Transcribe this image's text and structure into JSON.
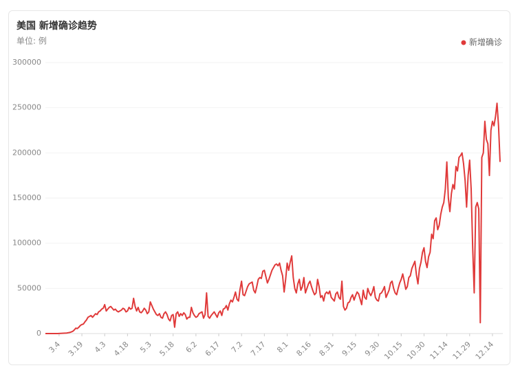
{
  "chart_data": {
    "type": "line",
    "title": "美国 新增确诊趋势",
    "subtitle": "单位: 例",
    "categories": [
      null,
      null,
      null,
      null,
      null,
      null,
      null,
      null,
      null,
      "3.4",
      null,
      null,
      null,
      null,
      null,
      null,
      null,
      null,
      null,
      null,
      null,
      null,
      null,
      null,
      "3.19",
      null,
      null,
      null,
      null,
      null,
      null,
      null,
      null,
      null,
      null,
      null,
      null,
      null,
      null,
      "4.3",
      null,
      null,
      null,
      null,
      null,
      null,
      null,
      null,
      null,
      null,
      null,
      null,
      null,
      null,
      "4.18",
      null,
      null,
      null,
      null,
      null,
      null,
      null,
      null,
      null,
      null,
      null,
      null,
      null,
      null,
      "5.3",
      null,
      null,
      null,
      null,
      null,
      null,
      null,
      null,
      null,
      null,
      null,
      null,
      null,
      null,
      "5.18",
      null,
      null,
      null,
      null,
      null,
      null,
      null,
      null,
      null,
      null,
      null,
      null,
      null,
      null,
      "6.2",
      null,
      null,
      null,
      null,
      null,
      null,
      null,
      null,
      null,
      null,
      null,
      null,
      null,
      null,
      "6.17",
      null,
      null,
      null,
      null,
      null,
      null,
      null,
      null,
      null,
      null,
      null,
      null,
      null,
      null,
      "7.2",
      null,
      null,
      null,
      null,
      null,
      null,
      null,
      null,
      null,
      null,
      null,
      null,
      null,
      null,
      "7.17",
      null,
      null,
      null,
      null,
      null,
      null,
      null,
      null,
      null,
      null,
      null,
      null,
      null,
      null,
      "8.1",
      null,
      null,
      null,
      null,
      null,
      null,
      null,
      null,
      null,
      null,
      null,
      null,
      null,
      null,
      "8.16",
      null,
      null,
      null,
      null,
      null,
      null,
      null,
      null,
      null,
      null,
      null,
      null,
      null,
      null,
      "8.31",
      null,
      null,
      null,
      null,
      null,
      null,
      null,
      null,
      null,
      null,
      null,
      null,
      null,
      null,
      "9.15",
      null,
      null,
      null,
      null,
      null,
      null,
      null,
      null,
      null,
      null,
      null,
      null,
      null,
      null,
      "9.30",
      null,
      null,
      null,
      null,
      null,
      null,
      null,
      null,
      null,
      null,
      null,
      null,
      null,
      null,
      "10.15",
      null,
      null,
      null,
      null,
      null,
      null,
      null,
      null,
      null,
      null,
      null,
      null,
      null,
      null,
      "10.30",
      null,
      null,
      null,
      null,
      null,
      null,
      null,
      null,
      null,
      null,
      null,
      null,
      null,
      null,
      "11.14",
      null,
      null,
      null,
      null,
      null,
      null,
      null,
      null,
      null,
      null,
      null,
      null,
      null,
      null,
      "11.29",
      null,
      null,
      null,
      null,
      null,
      null,
      null,
      null,
      null,
      null,
      null,
      null,
      null,
      null,
      "12.14",
      null,
      null,
      null,
      null,
      null
    ],
    "series": [
      {
        "name": "新增确诊",
        "color": "#e03a3a",
        "values": [
          0,
          0,
          0,
          0,
          0,
          0,
          0,
          0,
          0,
          100,
          200,
          300,
          400,
          500,
          600,
          900,
          1200,
          1800,
          2500,
          4000,
          6000,
          5500,
          7000,
          9000,
          10000,
          10500,
          13000,
          15000,
          18000,
          19000,
          20000,
          18000,
          20000,
          22000,
          21000,
          24000,
          25000,
          27000,
          28000,
          32000,
          25000,
          27000,
          29000,
          30000,
          28000,
          26000,
          27000,
          25000,
          24000,
          25000,
          26000,
          28000,
          27000,
          24000,
          25000,
          29000,
          27000,
          28000,
          39000,
          30000,
          25000,
          29000,
          24000,
          23000,
          25000,
          28000,
          26000,
          22000,
          24000,
          35000,
          31000,
          27000,
          24000,
          21000,
          20000,
          22000,
          18000,
          17000,
          22000,
          24000,
          21000,
          16000,
          14000,
          20000,
          21000,
          7000,
          22000,
          24000,
          19000,
          22000,
          20000,
          23000,
          21000,
          16000,
          18000,
          18000,
          29000,
          23000,
          20000,
          18000,
          19000,
          22000,
          23000,
          24000,
          17000,
          21000,
          45000,
          19000,
          17000,
          20000,
          22000,
          24000,
          21000,
          18000,
          23000,
          25000,
          20000,
          27000,
          28000,
          31000,
          26000,
          33000,
          37000,
          35000,
          40000,
          46000,
          38000,
          36000,
          49000,
          58000,
          43000,
          42000,
          47000,
          52000,
          55000,
          56000,
          57000,
          48000,
          45000,
          52000,
          60000,
          62000,
          61000,
          69000,
          70000,
          63000,
          56000,
          60000,
          65000,
          70000,
          73000,
          76000,
          77000,
          75000,
          78000,
          70000,
          64000,
          46000,
          60000,
          78000,
          70000,
          79000,
          86000,
          62000,
          50000,
          45000,
          55000,
          60000,
          48000,
          52000,
          62000,
          45000,
          50000,
          55000,
          58000,
          52000,
          47000,
          43000,
          45000,
          60000,
          52000,
          40000,
          42000,
          36000,
          44000,
          46000,
          44000,
          47000,
          40000,
          38000,
          36000,
          44000,
          46000,
          40000,
          38000,
          58000,
          30000,
          26000,
          28000,
          34000,
          35000,
          40000,
          43000,
          37000,
          42000,
          46000,
          44000,
          38000,
          32000,
          48000,
          40000,
          38000,
          50000,
          45000,
          42000,
          46000,
          52000,
          40000,
          37000,
          36000,
          44000,
          45000,
          48000,
          52000,
          40000,
          44000,
          48000,
          56000,
          58000,
          50000,
          45000,
          43000,
          50000,
          56000,
          60000,
          66000,
          58000,
          49000,
          52000,
          62000,
          64000,
          72000,
          76000,
          80000,
          65000,
          55000,
          72000,
          79000,
          90000,
          95000,
          80000,
          73000,
          85000,
          90000,
          110000,
          105000,
          125000,
          128000,
          115000,
          120000,
          132000,
          140000,
          145000,
          160000,
          190000,
          150000,
          135000,
          155000,
          165000,
          160000,
          185000,
          180000,
          195000,
          197000,
          200000,
          188000,
          170000,
          140000,
          175000,
          192000,
          160000,
          95000,
          45000,
          140000,
          145000,
          138000,
          12000,
          195000,
          200000,
          235000,
          215000,
          210000,
          175000,
          225000,
          235000,
          230000,
          240000,
          255000,
          230000,
          190000
        ]
      }
    ],
    "ylim": [
      0,
      300000
    ],
    "yticks": [
      0,
      50000,
      100000,
      150000,
      200000,
      250000,
      300000
    ],
    "grid": true,
    "legend": "top-right"
  }
}
